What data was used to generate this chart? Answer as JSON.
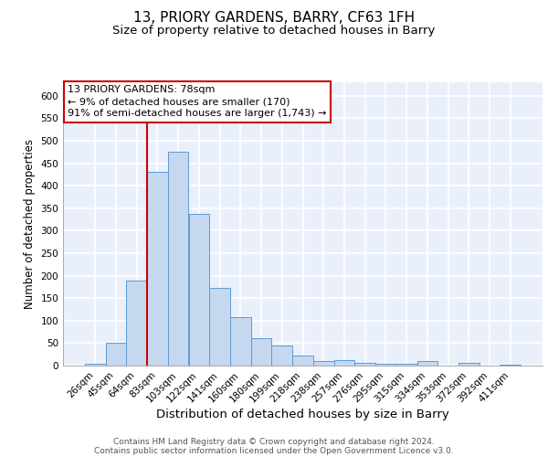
{
  "title1": "13, PRIORY GARDENS, BARRY, CF63 1FH",
  "title2": "Size of property relative to detached houses in Barry",
  "xlabel": "Distribution of detached houses by size in Barry",
  "ylabel": "Number of detached properties",
  "categories": [
    "26sqm",
    "45sqm",
    "64sqm",
    "83sqm",
    "103sqm",
    "122sqm",
    "141sqm",
    "160sqm",
    "180sqm",
    "199sqm",
    "218sqm",
    "238sqm",
    "257sqm",
    "276sqm",
    "295sqm",
    "315sqm",
    "334sqm",
    "353sqm",
    "372sqm",
    "392sqm",
    "411sqm"
  ],
  "values": [
    5,
    50,
    188,
    430,
    475,
    338,
    173,
    108,
    60,
    45,
    23,
    10,
    12,
    6,
    5,
    5,
    10,
    1,
    7,
    1,
    3
  ],
  "bar_color": "#c5d8f0",
  "bar_edge_color": "#5b9bd5",
  "vline_color": "#cc0000",
  "vline_x": 2.5,
  "annotation_line1": "13 PRIORY GARDENS: 78sqm",
  "annotation_line2": "← 9% of detached houses are smaller (170)",
  "annotation_line3": "91% of semi-detached houses are larger (1,743) →",
  "annotation_box_color": "white",
  "annotation_box_edge_color": "#cc0000",
  "ylim": [
    0,
    630
  ],
  "yticks": [
    0,
    50,
    100,
    150,
    200,
    250,
    300,
    350,
    400,
    450,
    500,
    550,
    600
  ],
  "background_color": "#eaf0fb",
  "grid_color": "white",
  "footer_line1": "Contains HM Land Registry data © Crown copyright and database right 2024.",
  "footer_line2": "Contains public sector information licensed under the Open Government Licence v3.0.",
  "title1_fontsize": 11,
  "title2_fontsize": 9.5,
  "xlabel_fontsize": 9.5,
  "ylabel_fontsize": 8.5,
  "tick_fontsize": 7.5,
  "footer_fontsize": 6.5,
  "annotation_fontsize": 8
}
